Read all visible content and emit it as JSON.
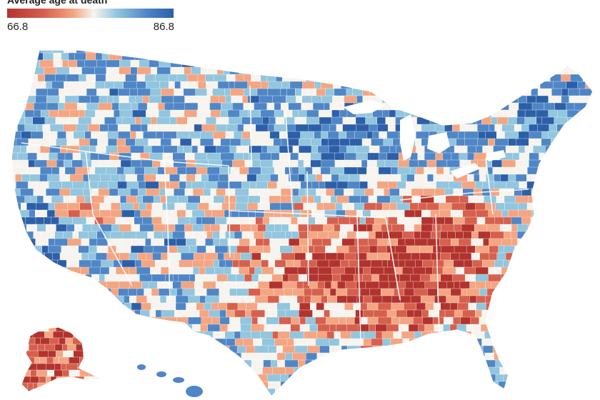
{
  "legend": {
    "title": "Average age at death",
    "min_label": "66.8",
    "max_label": "86.8",
    "min_value": 66.8,
    "max_value": 86.8,
    "color_low": "#b2332e",
    "color_mid": "#f7f4ef",
    "color_high": "#2c5fa8"
  },
  "map": {
    "region": "United States counties",
    "colors": {
      "red_dark": "#b2332e",
      "red": "#d6604d",
      "salmon": "#f4a582",
      "cream": "#f7f4ef",
      "light_blue": "#92c5de",
      "blue": "#4f86c6",
      "blue_dark": "#2c5fa8"
    }
  }
}
